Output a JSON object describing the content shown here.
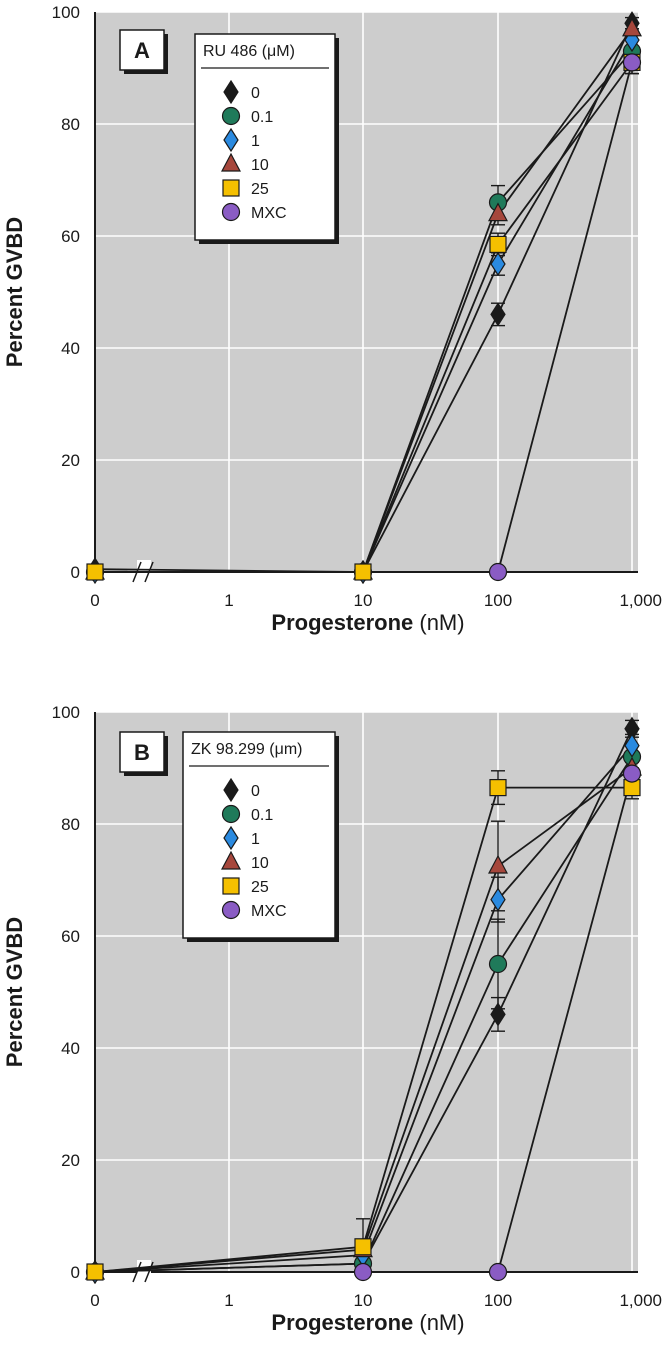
{
  "chart_data": [
    {
      "panel": "A",
      "type": "line",
      "legend_title": "RU 486 (μM)",
      "legend_placement": "top-left",
      "x_categories": [
        "0",
        "1",
        "10",
        "100",
        "1,000"
      ],
      "x_axis_break": "between 0 and 1",
      "xlabel_bold": "Progesterone",
      "xlabel_unit": " (nM)",
      "ylabel": "Percent GVBD",
      "yticks": [
        "0",
        "20",
        "40",
        "60",
        "80",
        "100"
      ],
      "ylim": [
        0,
        100
      ],
      "grid": true,
      "series": [
        {
          "name": "0",
          "marker": "diamond",
          "color": "#1a1a1a",
          "points": [
            {
              "x": "0",
              "y": 0.5
            },
            {
              "x": "10",
              "y": 0
            },
            {
              "x": "100",
              "y": 46,
              "err": 2
            },
            {
              "x": "1,000",
              "y": 98,
              "err": 1
            }
          ]
        },
        {
          "name": "0.1",
          "marker": "circle",
          "color": "#1f7a5a",
          "points": [
            {
              "x": "0",
              "y": 0
            },
            {
              "x": "10",
              "y": 0
            },
            {
              "x": "100",
              "y": 66,
              "err": 3
            },
            {
              "x": "1,000",
              "y": 93,
              "err": 2
            }
          ]
        },
        {
          "name": "1",
          "marker": "diamond",
          "color": "#2a8ae0",
          "points": [
            {
              "x": "0",
              "y": 0
            },
            {
              "x": "10",
              "y": 0
            },
            {
              "x": "100",
              "y": 55,
              "err": 2
            },
            {
              "x": "1,000",
              "y": 95,
              "err": 2
            }
          ]
        },
        {
          "name": "10",
          "marker": "triangle",
          "color": "#a6473c",
          "points": [
            {
              "x": "0",
              "y": 0
            },
            {
              "x": "10",
              "y": 0
            },
            {
              "x": "100",
              "y": 64,
              "err": 2
            },
            {
              "x": "1,000",
              "y": 97,
              "err": 1
            }
          ]
        },
        {
          "name": "25",
          "marker": "square",
          "color": "#f5c000",
          "points": [
            {
              "x": "0",
              "y": 0
            },
            {
              "x": "10",
              "y": 0
            },
            {
              "x": "100",
              "y": 58.5,
              "err": 2
            },
            {
              "x": "1,000",
              "y": 91,
              "err": 2
            }
          ]
        },
        {
          "name": "MXC",
          "marker": "circle",
          "color": "#8a5cc4",
          "points": [
            {
              "x": "100",
              "y": 0
            },
            {
              "x": "1,000",
              "y": 91,
              "err": 2
            }
          ]
        }
      ]
    },
    {
      "panel": "B",
      "type": "line",
      "legend_title": "ZK 98.299 (μm)",
      "legend_placement": "top-left",
      "x_categories": [
        "0",
        "1",
        "10",
        "100",
        "1,000"
      ],
      "x_axis_break": "between 0 and 1",
      "xlabel_bold": "Progesterone",
      "xlabel_unit": " (nM)",
      "ylabel": "Percent GVBD",
      "yticks": [
        "0",
        "20",
        "40",
        "60",
        "80",
        "100"
      ],
      "ylim": [
        0,
        100
      ],
      "grid": true,
      "series": [
        {
          "name": "0",
          "marker": "diamond",
          "color": "#1a1a1a",
          "points": [
            {
              "x": "0",
              "y": 0
            },
            {
              "x": "10",
              "y": 1.5
            },
            {
              "x": "100",
              "y": 46,
              "err": 3
            },
            {
              "x": "1,000",
              "y": 97,
              "err": 1.5
            }
          ]
        },
        {
          "name": "0.1",
          "marker": "circle",
          "color": "#1f7a5a",
          "points": [
            {
              "x": "0",
              "y": 0
            },
            {
              "x": "10",
              "y": 1.5
            },
            {
              "x": "100",
              "y": 55,
              "err": 8
            },
            {
              "x": "1,000",
              "y": 92,
              "err": 2
            }
          ]
        },
        {
          "name": "1",
          "marker": "diamond",
          "color": "#2a8ae0",
          "points": [
            {
              "x": "0",
              "y": 0
            },
            {
              "x": "10",
              "y": 3
            },
            {
              "x": "100",
              "y": 66.5,
              "err": 4
            },
            {
              "x": "1,000",
              "y": 94,
              "err": 2
            }
          ]
        },
        {
          "name": "10",
          "marker": "triangle",
          "color": "#a6473c",
          "points": [
            {
              "x": "0",
              "y": 0
            },
            {
              "x": "10",
              "y": 4
            },
            {
              "x": "100",
              "y": 72.5,
              "err": 8
            },
            {
              "x": "1,000",
              "y": 90,
              "err": 2
            }
          ]
        },
        {
          "name": "25",
          "marker": "square",
          "color": "#f5c000",
          "points": [
            {
              "x": "0",
              "y": 0
            },
            {
              "x": "10",
              "y": 4.5,
              "err": 5
            },
            {
              "x": "100",
              "y": 86.5,
              "err": 3
            },
            {
              "x": "1,000",
              "y": 86.5,
              "err": 2
            }
          ]
        },
        {
          "name": "MXC",
          "marker": "circle",
          "color": "#8a5cc4",
          "points": [
            {
              "x": "10",
              "y": 0
            },
            {
              "x": "100",
              "y": 0
            },
            {
              "x": "1,000",
              "y": 89,
              "err": 2
            }
          ]
        }
      ]
    }
  ]
}
